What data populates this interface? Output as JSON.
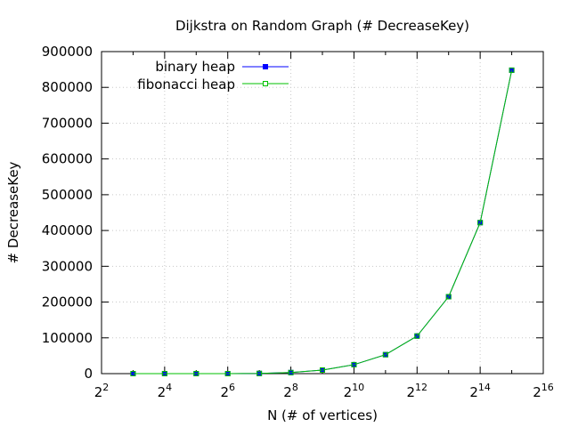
{
  "chart_data": {
    "type": "line",
    "title": "Dijkstra on Random Graph (# DecreaseKey)",
    "xlabel": "N (# of vertices)",
    "ylabel": "# DecreaseKey",
    "x_scale": "log2",
    "xlim": [
      4,
      65536
    ],
    "ylim": [
      0,
      900000
    ],
    "grid": true,
    "legend_position": "top-left",
    "x_tick_exponents": [
      2,
      4,
      6,
      8,
      10,
      12,
      14,
      16
    ],
    "x_tick_base": "2",
    "y_ticks": [
      "0",
      "100000",
      "200000",
      "300000",
      "400000",
      "500000",
      "600000",
      "700000",
      "800000",
      "900000"
    ],
    "x": [
      8,
      16,
      32,
      64,
      128,
      256,
      512,
      1024,
      2048,
      4096,
      8192,
      16384,
      32768
    ],
    "series": [
      {
        "name": "binary heap",
        "color": "#0000ff",
        "marker": "filled-square",
        "values": [
          0,
          0,
          0,
          0,
          500,
          3000,
          10000,
          25000,
          53000,
          105000,
          215000,
          422000,
          848000
        ]
      },
      {
        "name": "fibonacci heap",
        "color": "#00c000",
        "marker": "open-square",
        "values": [
          0,
          0,
          0,
          0,
          500,
          3000,
          10000,
          25000,
          53000,
          105000,
          215000,
          422000,
          848000
        ]
      }
    ]
  }
}
